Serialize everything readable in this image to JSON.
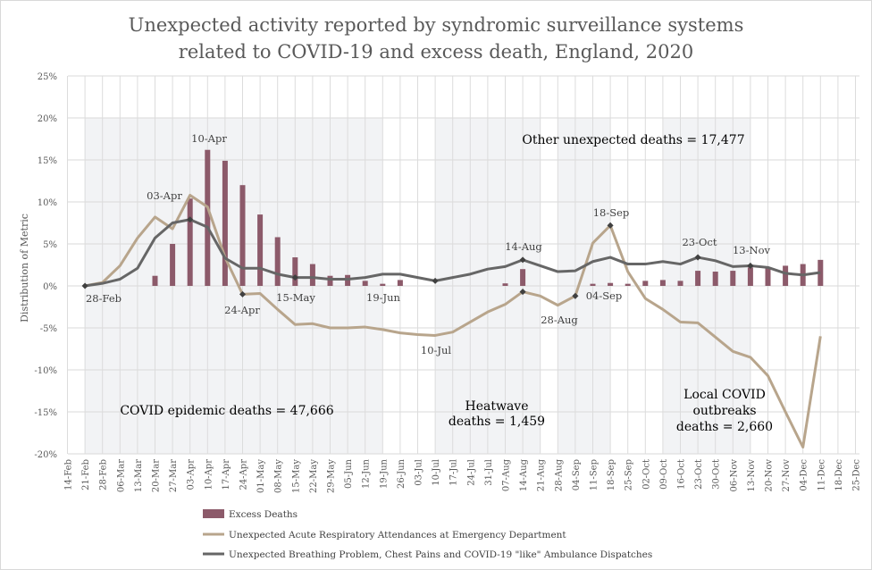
{
  "chart_data": {
    "type": "bar+line",
    "title": [
      "Unexpected activity reported by syndromic surveillance systems",
      "related to COVID-19 and excess death, England, 2020"
    ],
    "xlabel": "",
    "ylabel": "Distribution  of Metric",
    "ylim": [
      -20,
      25
    ],
    "yticks": [
      "-20%",
      "-15%",
      "-10%",
      "-5%",
      "0%",
      "5%",
      "10%",
      "15%",
      "20%",
      "25%"
    ],
    "grid": true,
    "legend_position": "bottom",
    "categories": [
      "14-Feb",
      "21-Feb",
      "28-Feb",
      "06-Mar",
      "13-Mar",
      "20-Mar",
      "27-Mar",
      "03-Apr",
      "10-Apr",
      "17-Apr",
      "24-Apr",
      "01-May",
      "08-May",
      "15-May",
      "22-May",
      "29-May",
      "05-Jun",
      "12-Jun",
      "19-Jun",
      "26-Jun",
      "03-Jul",
      "10-Jul",
      "17-Jul",
      "24-Jul",
      "31-Jul",
      "07-Aug",
      "14-Aug",
      "21-Aug",
      "28-Aug",
      "04-Sep",
      "11-Sep",
      "18-Sep",
      "25-Sep",
      "02-Oct",
      "09-Oct",
      "16-Oct",
      "23-Oct",
      "30-Oct",
      "06-Nov",
      "13-Nov",
      "20-Nov",
      "27-Nov",
      "04-Dec",
      "11-Dec",
      "18-Dec",
      "25-Dec"
    ],
    "series": [
      {
        "name": "Excess Deaths",
        "type": "bar",
        "color": "#8c5a6a",
        "values": [
          null,
          null,
          null,
          null,
          null,
          1.2,
          5.0,
          10.4,
          16.2,
          14.9,
          12.0,
          8.5,
          5.8,
          3.4,
          2.6,
          1.2,
          1.3,
          0.6,
          0.25,
          0.7,
          null,
          null,
          null,
          null,
          null,
          0.3,
          2.0,
          null,
          null,
          null,
          0.25,
          0.35,
          0.25,
          0.6,
          0.7,
          0.6,
          1.8,
          1.7,
          1.8,
          2.2,
          2.1,
          2.4,
          2.6,
          3.1,
          null,
          null
        ]
      },
      {
        "name": "Unexpected Acute Respiratory Attendances at Emergency Department",
        "type": "line",
        "color": "#b8a58c",
        "values": [
          null,
          0,
          0.4,
          2.4,
          5.7,
          8.2,
          6.8,
          10.8,
          9.4,
          3.4,
          -1.0,
          -0.9,
          -2.8,
          -4.6,
          -4.5,
          -5.0,
          -5.0,
          -4.9,
          -5.2,
          -5.6,
          -5.8,
          -5.9,
          -5.5,
          -4.3,
          -3.1,
          -2.2,
          -0.7,
          -1.2,
          -2.3,
          -1.2,
          5.1,
          7.2,
          1.7,
          -1.5,
          -2.8,
          -4.3,
          -4.4,
          -6.1,
          -7.8,
          -8.5,
          -10.7,
          -15.0,
          -19.2,
          -6.0,
          null,
          null
        ]
      },
      {
        "name": "Unexpected Breathing Problem, Chest Pains and COVID-19 \"like\" Ambulance Dispatches",
        "type": "line",
        "color": "#666666",
        "values": [
          null,
          0,
          0.3,
          0.8,
          2.1,
          5.7,
          7.5,
          7.9,
          7.0,
          3.3,
          2.1,
          2.1,
          1.4,
          1.0,
          1.0,
          0.8,
          0.8,
          1.0,
          1.4,
          1.4,
          1.0,
          0.6,
          1.0,
          1.4,
          2.0,
          2.3,
          3.1,
          2.4,
          1.7,
          1.8,
          2.9,
          3.4,
          2.6,
          2.6,
          2.9,
          2.6,
          3.4,
          3.0,
          2.3,
          2.4,
          2.2,
          1.5,
          1.3,
          1.6,
          null,
          null
        ]
      }
    ],
    "shaded_periods": [
      {
        "start": "21-Feb",
        "end": "19-Jun"
      },
      {
        "start": "10-Jul",
        "end": "21-Aug"
      },
      {
        "start": "28-Aug",
        "end": "18-Sep"
      },
      {
        "start": "09-Oct",
        "end": "13-Nov"
      }
    ],
    "point_labels": [
      "28-Feb",
      "03-Apr",
      "10-Apr",
      "24-Apr",
      "15-May",
      "19-Jun",
      "10-Jul",
      "14-Aug",
      "28-Aug",
      "04-Sep",
      "18-Sep",
      "23-Oct",
      "13-Nov"
    ],
    "annotations": {
      "other": "Other unexpected deaths = 17,477",
      "covid": "COVID epidemic deaths = 47,666",
      "heat1": "Heatwave",
      "heat2": "deaths = 1,459",
      "local1": "Local COVID",
      "local2": "outbreaks",
      "local3": "deaths = 2,660"
    }
  }
}
